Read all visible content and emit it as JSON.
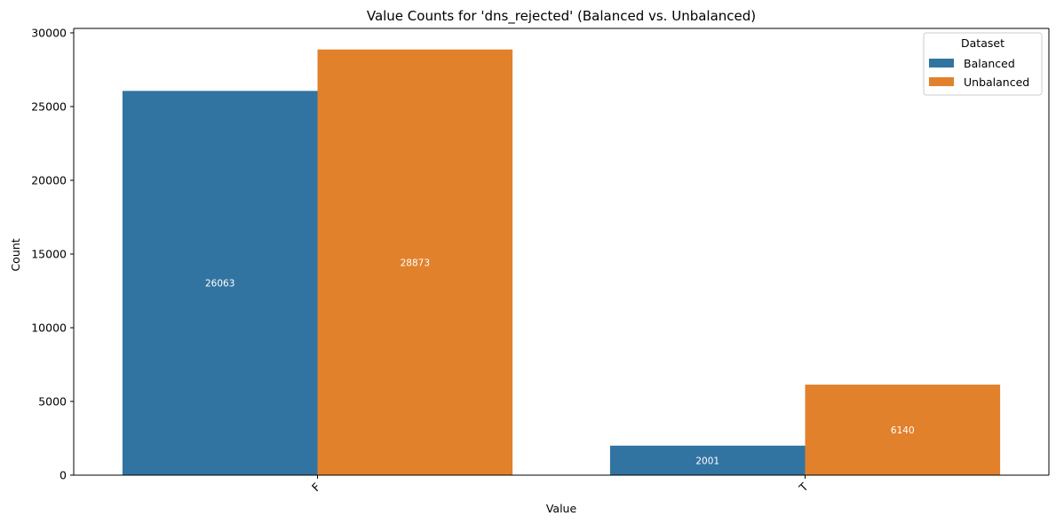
{
  "chart_data": {
    "type": "bar",
    "title": "Value Counts for 'dns_rejected' (Balanced vs. Unbalanced)",
    "xlabel": "Value",
    "ylabel": "Count",
    "categories": [
      "F",
      "T"
    ],
    "series": [
      {
        "name": "Balanced",
        "values": [
          26063,
          2001
        ],
        "color": "#3274a1"
      },
      {
        "name": "Unbalanced",
        "values": [
          28873,
          6140
        ],
        "color": "#e1812c"
      }
    ],
    "ylim": [
      0,
      30300
    ],
    "yticks": [
      0,
      5000,
      10000,
      15000,
      20000,
      25000,
      30000
    ],
    "grid": false,
    "legend": {
      "title": "Dataset",
      "placement": "top-right"
    }
  }
}
